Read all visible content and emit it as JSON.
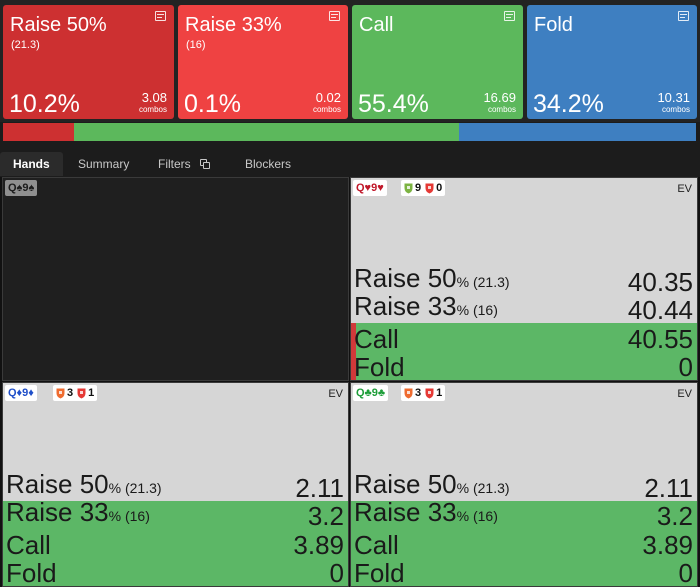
{
  "colors": {
    "raise50": "#cd3031",
    "raise33": "#ef4242",
    "call": "#5cb85c",
    "fold": "#3e7fc1"
  },
  "cards": [
    {
      "title": "Raise 50%",
      "sub": "(21.3)",
      "freq": "10.2%",
      "combos": "3.08",
      "combos_label": "combos",
      "icon": "menu-icon"
    },
    {
      "title": "Raise 33%",
      "sub": "(16)",
      "freq": "0.1%",
      "combos": "0.02",
      "combos_label": "combos",
      "icon": "menu-icon"
    },
    {
      "title": "Call",
      "sub": "",
      "freq": "55.4%",
      "combos": "16.69",
      "combos_label": "combos",
      "icon": "menu-icon"
    },
    {
      "title": "Fold",
      "sub": "",
      "freq": "34.2%",
      "combos": "10.31",
      "combos_label": "combos",
      "icon": "menu-icon"
    }
  ],
  "strategy_bar": [
    0.102,
    0.001,
    0.554,
    0.342
  ],
  "tabs": {
    "hands": "Hands",
    "summary": "Summary",
    "filters": "Filters",
    "blockers": "Blockers"
  },
  "cells": [
    {
      "hand": "Q♠9♠",
      "empty": true
    },
    {
      "hand": "Q♥9♥",
      "hand_color": "#c0182a",
      "blockers": [
        {
          "shield": "#7cb342",
          "n": "9"
        },
        {
          "shield": "#e53935",
          "n": "0"
        }
      ],
      "ev_label": "EV",
      "call_fill": 0.5,
      "raise_edge": true,
      "rows": [
        {
          "name": "Raise 50",
          "pct": "%",
          "size": "(21.3)",
          "val": "40.35"
        },
        {
          "name": "Raise 33",
          "pct": "%",
          "size": "(16)",
          "val": "40.44"
        },
        {
          "name": "Call",
          "pct": "",
          "size": "",
          "val": "40.55"
        },
        {
          "name": "Fold",
          "pct": "",
          "size": "",
          "val": "0"
        }
      ]
    },
    {
      "hand": "Q♦9♦",
      "hand_color": "#1f4fc9",
      "blockers": [
        {
          "shield": "#ef6c30",
          "n": "3"
        },
        {
          "shield": "#e53935",
          "n": "1"
        }
      ],
      "ev_label": "EV",
      "call_fill": 0.75,
      "raise_edge": false,
      "rows": [
        {
          "name": "Raise 50",
          "pct": "%",
          "size": "(21.3)",
          "val": "2.11"
        },
        {
          "name": "Raise 33",
          "pct": "%",
          "size": "(16)",
          "val": "3.2"
        },
        {
          "name": "Call",
          "pct": "",
          "size": "",
          "val": "3.89"
        },
        {
          "name": "Fold",
          "pct": "",
          "size": "",
          "val": "0"
        }
      ]
    },
    {
      "hand": "Q♣9♣",
      "hand_color": "#1e9e3a",
      "blockers": [
        {
          "shield": "#ef6c30",
          "n": "3"
        },
        {
          "shield": "#e53935",
          "n": "1"
        }
      ],
      "ev_label": "EV",
      "call_fill": 0.75,
      "raise_edge": false,
      "rows": [
        {
          "name": "Raise 50",
          "pct": "%",
          "size": "(21.3)",
          "val": "2.11"
        },
        {
          "name": "Raise 33",
          "pct": "%",
          "size": "(16)",
          "val": "3.2"
        },
        {
          "name": "Call",
          "pct": "",
          "size": "",
          "val": "3.89"
        },
        {
          "name": "Fold",
          "pct": "",
          "size": "",
          "val": "0"
        }
      ]
    }
  ]
}
